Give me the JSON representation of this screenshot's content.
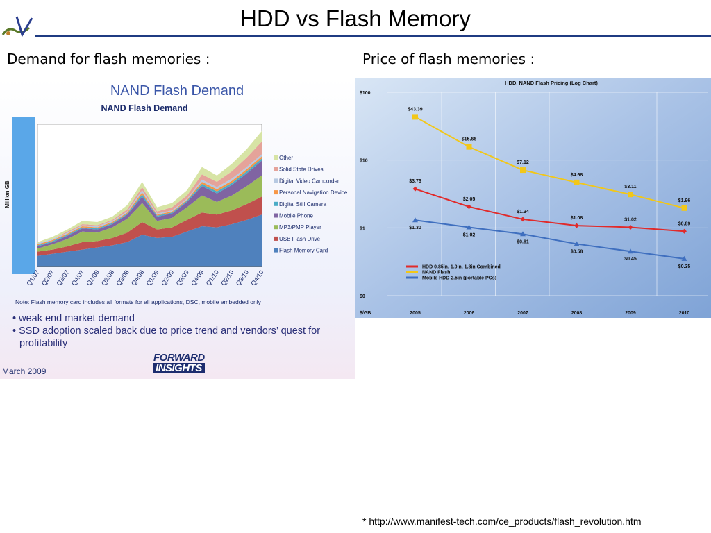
{
  "page": {
    "title": "HDD vs Flash Memory",
    "left_heading": "Demand for flash memories :",
    "right_heading": "Price of flash memories :",
    "footnote": "* http://www.manifest-tech.com/ce_products/flash_revolution.htm"
  },
  "demand_panel": {
    "bullets": [
      "• weak end market demand",
      "• SSD adoption scaled back due to price trend and vendors’ quest for profitability"
    ],
    "date": "March 2009",
    "brand_line1": "FORWARD",
    "brand_line2": "INSIGHTS"
  },
  "chart_data": [
    {
      "type": "area",
      "title": "NAND Flash Demand",
      "subtitle": "NAND Flash Demand",
      "xlabel": "",
      "ylabel": "Million GB",
      "note": "Note: Flash memory card includes all formats for all applications, DSC, mobile embedded only",
      "stacked": true,
      "legend_position": "right",
      "grid": false,
      "categories": [
        "Q1/07",
        "Q2/07",
        "Q3/07",
        "Q4/07",
        "Q1/08",
        "Q2/08",
        "Q3/08",
        "Q4/08",
        "Q1/09",
        "Q2/09",
        "Q3/09",
        "Q4/09",
        "Q1/10",
        "Q2/10",
        "Q3/10",
        "Q4/10"
      ],
      "series": [
        {
          "name": "Flash Memory Card",
          "color": "#4f81bd",
          "values": [
            10,
            12,
            14,
            16,
            18,
            20,
            23,
            30,
            27,
            28,
            33,
            38,
            37,
            40,
            44,
            49
          ]
        },
        {
          "name": "USB Flash Drive",
          "color": "#c0504d",
          "values": [
            4,
            4,
            5,
            7,
            6,
            7,
            9,
            12,
            8,
            9,
            11,
            13,
            12,
            13,
            15,
            17
          ]
        },
        {
          "name": "MP3/PMP Player",
          "color": "#9bbb59",
          "values": [
            3,
            5,
            7,
            10,
            8,
            10,
            13,
            18,
            8,
            9,
            12,
            16,
            12,
            14,
            17,
            20
          ]
        },
        {
          "name": "Mobile Phone",
          "color": "#8064a2",
          "values": [
            2,
            2,
            3,
            3,
            3,
            3,
            4,
            6,
            4,
            4,
            5,
            9,
            8,
            10,
            12,
            14
          ]
        },
        {
          "name": "Digital Still Camera",
          "color": "#4bacc6",
          "values": [
            1,
            1,
            1,
            1,
            1,
            1,
            1,
            2,
            1,
            1,
            1,
            2,
            2,
            2,
            2,
            2
          ]
        },
        {
          "name": "Personal Navigation Device",
          "color": "#f79646",
          "values": [
            1,
            1,
            1,
            1,
            1,
            1,
            1,
            2,
            1,
            1,
            1,
            2,
            2,
            2,
            2,
            2
          ]
        },
        {
          "name": "Digital Video Camcorder",
          "color": "#b7c9e2",
          "values": [
            1,
            1,
            1,
            1,
            1,
            1,
            1,
            2,
            1,
            1,
            1,
            2,
            2,
            2,
            2,
            2
          ]
        },
        {
          "name": "Solid State Drives",
          "color": "#e5a39a",
          "values": [
            0,
            0,
            1,
            1,
            1,
            1,
            2,
            3,
            2,
            3,
            3,
            5,
            5,
            7,
            9,
            12
          ]
        },
        {
          "name": "Other",
          "color": "#d7e4a5",
          "values": [
            1,
            2,
            2,
            3,
            3,
            3,
            4,
            5,
            4,
            4,
            5,
            7,
            6,
            7,
            8,
            10
          ]
        }
      ]
    },
    {
      "type": "line",
      "title": "HDD, NAND Flash Pricing (Log Chart)",
      "xlabel": "$/GB",
      "ylabel": "",
      "log_scale": true,
      "ylim": [
        0.1,
        100
      ],
      "y_tick_labels": [
        "$100",
        "$10",
        "$1",
        "$0"
      ],
      "grid": true,
      "legend_position": "bottom-left",
      "x": [
        "2005",
        "2006",
        "2007",
        "2008",
        "2009",
        "2010"
      ],
      "series": [
        {
          "name": "HDD 0.85in, 1.0in, 1.8in Combined",
          "color": "#e12a2a",
          "values": [
            3.76,
            2.05,
            1.34,
            1.08,
            1.02,
            0.89
          ],
          "labels": [
            "$3.76",
            "$2.05",
            "$1.34",
            "$1.08",
            "$1.02",
            "$0.89"
          ]
        },
        {
          "name": "NAND Flash",
          "color": "#f2c718",
          "values": [
            43.39,
            15.66,
            7.12,
            4.68,
            3.11,
            1.96
          ],
          "labels": [
            "$43.39",
            "$15.66",
            "$7.12",
            "$4.68",
            "$3.11",
            "$1.96"
          ]
        },
        {
          "name": "Mobile HDD 2.5in (portable PCs)",
          "color": "#3f6fbf",
          "values": [
            1.3,
            1.02,
            0.81,
            0.58,
            0.45,
            0.35
          ],
          "labels": [
            "$1.30",
            "$1.02",
            "$0.81",
            "$0.58",
            "$0.45",
            "$0.35"
          ]
        }
      ]
    }
  ]
}
